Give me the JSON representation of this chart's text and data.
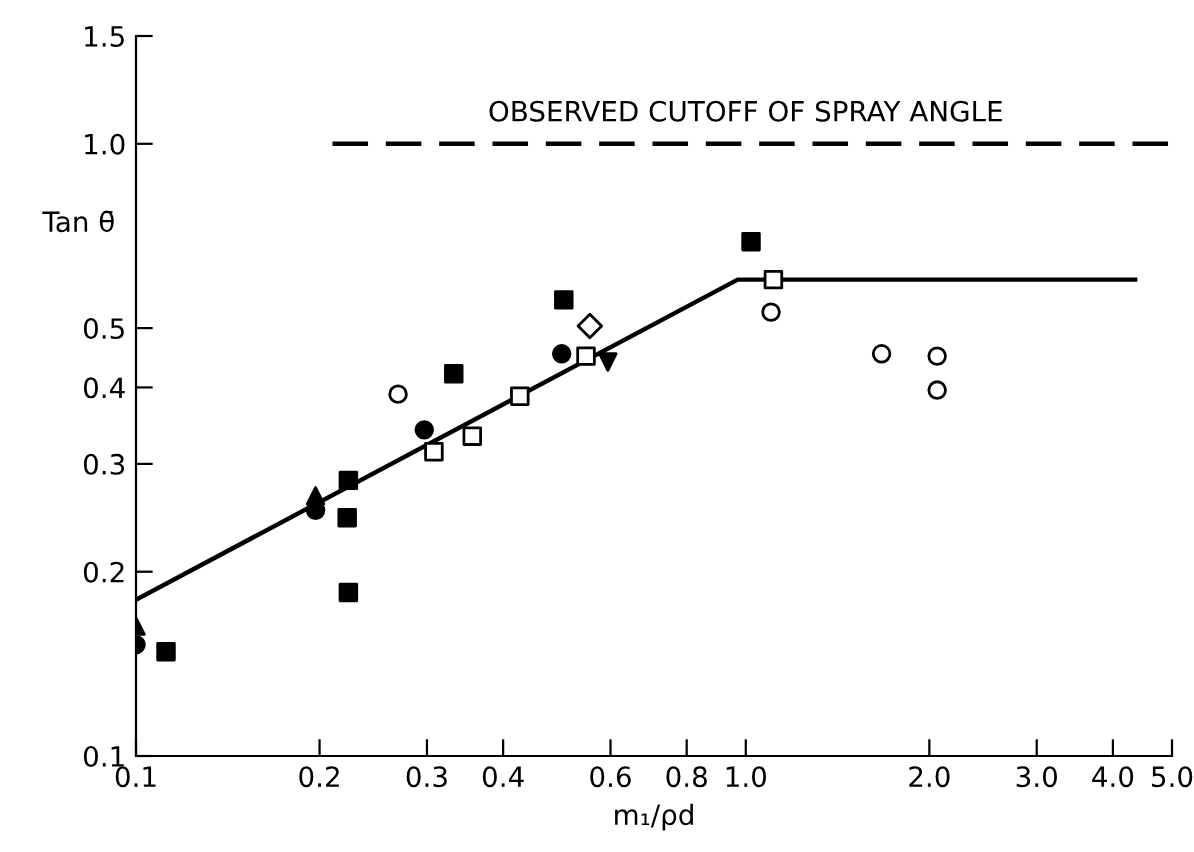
{
  "chart_data": {
    "type": "scatter",
    "xlabel": "m₁/ρd",
    "ylabel": "Tan θ̄",
    "log": "xy",
    "xlim": [
      0.1,
      5.0
    ],
    "ylim": [
      0.1,
      1.5
    ],
    "xticks": [
      0.1,
      0.2,
      0.3,
      0.4,
      0.6,
      0.8,
      {
        "value": 1,
        "label": "1.0"
      },
      {
        "value": 2,
        "label": "2.0"
      },
      {
        "value": 3,
        "label": "3.0"
      },
      {
        "value": 4,
        "label": "4.0"
      },
      {
        "value": 5,
        "label": "5.0"
      }
    ],
    "yticks": [
      0.1,
      0.2,
      0.3,
      0.4,
      0.5,
      {
        "value": 1,
        "label": "1.0"
      },
      1.5
    ],
    "grid": false,
    "legend": false,
    "annotations": [
      {
        "text": "OBSERVED CUTOFF OF SPRAY ANGLE",
        "x": 1.0,
        "y": 1.0
      }
    ],
    "series": [
      {
        "marker": "circle",
        "color": "#000000",
        "x": [
          0.1,
          0.197,
          0.297,
          0.499
        ],
        "values": [
          0.152,
          0.252,
          0.341,
          0.454
        ]
      },
      {
        "marker": "triangle",
        "color": "#000000",
        "x": [
          0.1,
          0.197
        ],
        "values": [
          0.163,
          0.266
        ]
      },
      {
        "marker": "triangle-down",
        "color": "#000000",
        "x": [
          0.594
        ],
        "values": [
          0.44
        ]
      },
      {
        "marker": "square",
        "color": "#000000",
        "x": [
          0.112,
          0.223,
          0.222,
          0.223,
          0.332,
          0.503,
          1.02
        ],
        "values": [
          0.148,
          0.282,
          0.245,
          0.185,
          0.421,
          0.556,
          0.692
        ]
      },
      {
        "marker": "square-open",
        "color": "#000000",
        "x": [
          0.308,
          0.356,
          0.426,
          0.547,
          1.11
        ],
        "values": [
          0.314,
          0.333,
          0.387,
          0.45,
          0.6
        ]
      },
      {
        "marker": "diamond-open",
        "color": "#000000",
        "x": [
          0.555
        ],
        "values": [
          0.504
        ]
      },
      {
        "marker": "circle-open",
        "color": "#000000",
        "x": [
          0.269,
          1.1
        ],
        "values": [
          0.39,
          0.531
        ]
      },
      {
        "marker": "circle-open",
        "color": "#000000",
        "x": [
          1.67
        ],
        "values": [
          0.454
        ]
      },
      {
        "marker": "circle-open",
        "color": "#000000",
        "x": [
          2.06,
          2.06
        ],
        "values": [
          0.45,
          0.396
        ]
      },
      {
        "type": "line",
        "marker": "none",
        "line_style": "solid",
        "color": "#000000",
        "x": [
          0.1,
          0.97,
          4.35
        ],
        "values": [
          0.18,
          0.6,
          0.6
        ]
      },
      {
        "type": "line",
        "marker": "none",
        "line_style": "dashed",
        "color": "#000000",
        "x": [
          0.21,
          5.0
        ],
        "values": [
          1.0,
          1.0
        ]
      }
    ]
  }
}
